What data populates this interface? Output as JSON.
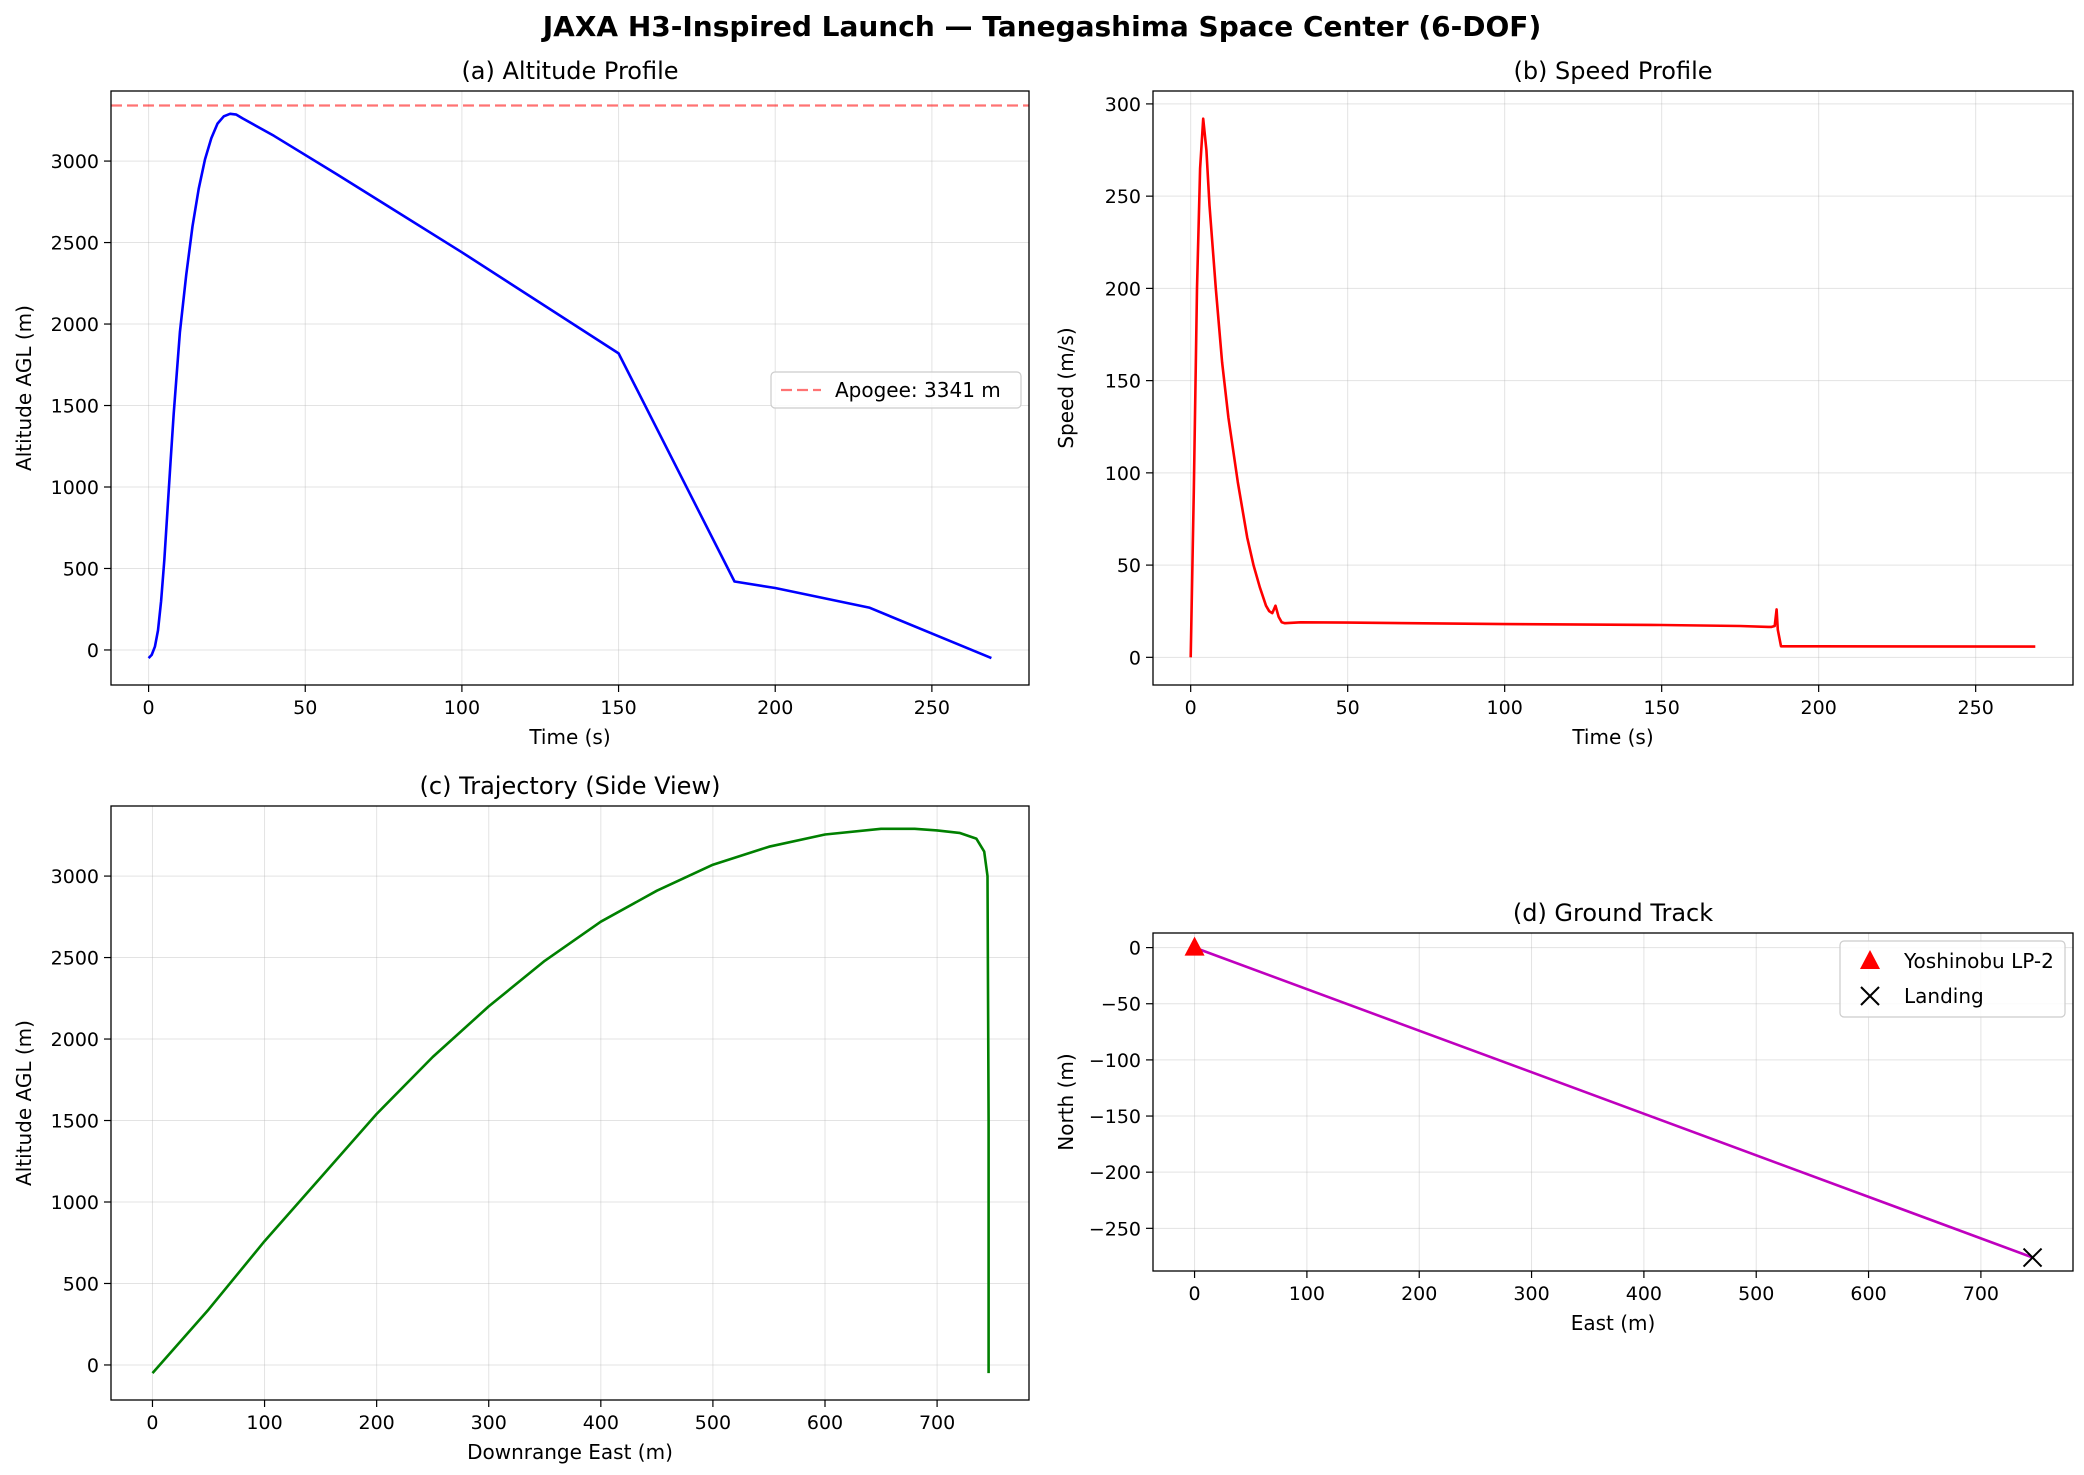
{
  "figure": {
    "suptitle": "JAXA H3-Inspired Launch — Tanegashima Space Center (6-DOF)"
  },
  "chart_data": [
    {
      "id": "a",
      "type": "line",
      "title": "(a) Altitude Profile",
      "xlabel": "Time (s)",
      "ylabel": "Altitude AGL (m)",
      "xlim": [
        -12,
        281
      ],
      "ylim": [
        -215,
        3430
      ],
      "xticks": [
        0,
        50,
        100,
        150,
        200,
        250
      ],
      "yticks": [
        0,
        500,
        1000,
        1500,
        2000,
        2500,
        3000
      ],
      "grid": true,
      "legend_position": "center-right",
      "series": [
        {
          "color": "#0000ff",
          "x": [
            0,
            1,
            2,
            3,
            4,
            5,
            6,
            7,
            8,
            9,
            10,
            12,
            14,
            16,
            18,
            20,
            22,
            24,
            26,
            28,
            30,
            40,
            60,
            100,
            150,
            187,
            200,
            230,
            269
          ],
          "y": [
            -50,
            -30,
            20,
            120,
            300,
            550,
            850,
            1150,
            1450,
            1700,
            1950,
            2300,
            2600,
            2830,
            3010,
            3140,
            3230,
            3275,
            3290,
            3285,
            3262,
            3155,
            2920,
            2440,
            1820,
            420,
            380,
            260,
            -50
          ]
        }
      ],
      "hlines": [
        {
          "y": 3341,
          "label": "Apogee: 3341 m",
          "color": "#ff0000",
          "style": "dashed"
        }
      ]
    },
    {
      "id": "b",
      "type": "line",
      "title": "(b) Speed Profile",
      "xlabel": "Time (s)",
      "ylabel": "Speed (m/s)",
      "xlim": [
        -12,
        281
      ],
      "ylim": [
        -15,
        307
      ],
      "xticks": [
        0,
        50,
        100,
        150,
        200,
        250
      ],
      "yticks": [
        0,
        50,
        100,
        150,
        200,
        250,
        300
      ],
      "grid": true,
      "series": [
        {
          "color": "#ff0000",
          "x": [
            0,
            1,
            2,
            3,
            4,
            5,
            6,
            8,
            10,
            12,
            15,
            18,
            20,
            22,
            24,
            25,
            26,
            27,
            28,
            29,
            30,
            35,
            50,
            100,
            150,
            175,
            184,
            185,
            186,
            186.6,
            187,
            188,
            190,
            200,
            269
          ],
          "y": [
            0,
            90,
            200,
            265,
            292,
            275,
            245,
            200,
            160,
            130,
            95,
            65,
            50,
            38,
            28,
            25,
            24,
            28,
            22,
            19,
            18.5,
            19,
            18.8,
            18,
            17.5,
            17,
            16.5,
            16.5,
            17,
            26,
            15,
            6,
            6,
            6,
            5.8
          ]
        }
      ]
    },
    {
      "id": "c",
      "type": "line",
      "title": "(c) Trajectory (Side View)",
      "xlabel": "Downrange East (m)",
      "ylabel": "Altitude AGL (m)",
      "xlim": [
        -37,
        782
      ],
      "ylim": [
        -215,
        3430
      ],
      "xticks": [
        0,
        100,
        200,
        300,
        400,
        500,
        600,
        700
      ],
      "yticks": [
        0,
        500,
        1000,
        1500,
        2000,
        2500,
        3000
      ],
      "grid": true,
      "series": [
        {
          "color": "#008000",
          "x": [
            0,
            50,
            100,
            150,
            200,
            250,
            300,
            350,
            400,
            450,
            500,
            550,
            600,
            650,
            680,
            700,
            720,
            735,
            742,
            745,
            746,
            746
          ],
          "y": [
            -50,
            340,
            760,
            1150,
            1540,
            1890,
            2200,
            2480,
            2720,
            2910,
            3070,
            3180,
            3255,
            3290,
            3290,
            3280,
            3265,
            3230,
            3150,
            3000,
            1500,
            -50
          ]
        }
      ]
    },
    {
      "id": "d",
      "type": "line",
      "title": "(d) Ground Track",
      "xlabel": "East (m)",
      "ylabel": "North (m)",
      "xlim": [
        -37,
        782
      ],
      "ylim": [
        -288,
        13
      ],
      "xticks": [
        0,
        100,
        200,
        300,
        400,
        500,
        600,
        700
      ],
      "yticks": [
        0,
        -50,
        -100,
        -150,
        -200,
        -250
      ],
      "grid": true,
      "legend_position": "upper-right",
      "series": [
        {
          "color": "#bf00bf",
          "x": [
            0,
            746
          ],
          "y": [
            0,
            -276
          ]
        }
      ],
      "markers": [
        {
          "label": "Yoshinobu LP-2",
          "x": 0,
          "y": 0,
          "marker": "triangle",
          "color": "#ff0000"
        },
        {
          "label": "Landing",
          "x": 746,
          "y": -276,
          "marker": "x",
          "color": "#000000"
        }
      ]
    }
  ]
}
